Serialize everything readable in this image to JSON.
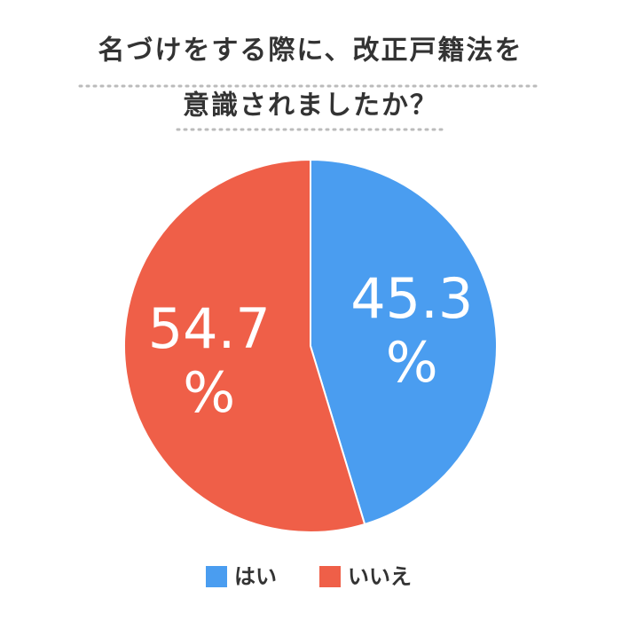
{
  "chart_data": {
    "type": "pie",
    "title": [
      "名づけをする際に、改正戸籍法を",
      "意識されましたか？"
    ],
    "categories": [
      "はい",
      "いいえ"
    ],
    "values": [
      45.3,
      54.7
    ],
    "value_labels": [
      "45.3%",
      "54.7%"
    ],
    "colors": [
      "#4a9df0",
      "#ef5f48"
    ]
  }
}
